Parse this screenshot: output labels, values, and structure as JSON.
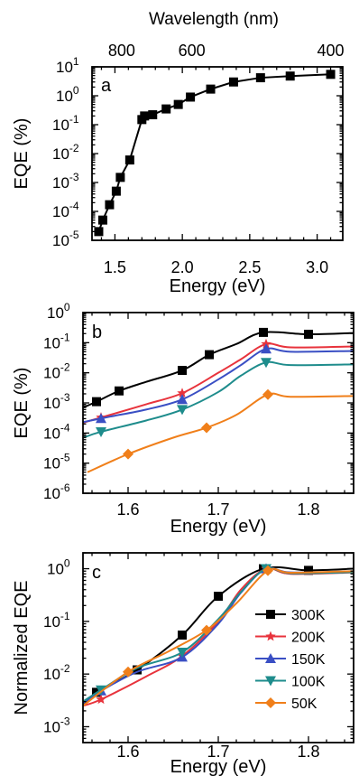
{
  "figure": {
    "top_axis_label": "Wavelength (nm)",
    "top_ticks": [
      "800",
      "600",
      "400"
    ]
  },
  "chart_data": [
    {
      "panel": "a",
      "type": "line",
      "xlabel": "Energy (eV)",
      "ylabel": "EQE (%)",
      "xlim": [
        1.33,
        3.19
      ],
      "ylim": [
        1e-05,
        10
      ],
      "y_scale": "log",
      "x_ticks": [
        "1.5",
        "2.0",
        "2.5",
        "3.0"
      ],
      "y_ticks": [
        "10-5",
        "10-4",
        "10-3",
        "10-2",
        "10-1",
        "100",
        "101"
      ],
      "top_axis": {
        "label": "Wavelength (nm)",
        "ticks": [
          "800",
          "600",
          "400"
        ],
        "tick_energy": [
          1.55,
          2.07,
          3.1
        ]
      },
      "series": [
        {
          "color": "#000000",
          "marker": "square",
          "x": [
            1.38,
            1.41,
            1.46,
            1.51,
            1.54,
            1.61,
            1.7,
            1.72,
            1.78,
            1.88,
            1.97,
            2.06,
            2.21,
            2.38,
            2.58,
            2.8,
            3.1
          ],
          "y": [
            2e-05,
            5e-05,
            0.00017,
            0.0005,
            0.0015,
            0.006,
            0.15,
            0.2,
            0.22,
            0.35,
            0.5,
            0.9,
            1.7,
            3.0,
            4.2,
            4.8,
            5.5
          ]
        }
      ]
    },
    {
      "panel": "b",
      "type": "line",
      "xlabel": "Energy (eV)",
      "ylabel": "EQE (%)",
      "xlim": [
        1.55,
        1.85
      ],
      "ylim": [
        1e-06,
        1
      ],
      "y_scale": "log",
      "x_ticks": [
        "1.6",
        "1.7",
        "1.8"
      ],
      "y_ticks": [
        "10-6",
        "10-5",
        "10-4",
        "10-3",
        "10-2",
        "10-1",
        "100"
      ],
      "series": [
        {
          "color": "#000000",
          "marker": "square",
          "x": [
            1.55,
            1.565,
            1.59,
            1.62,
            1.66,
            1.69,
            1.72,
            1.75,
            1.8,
            1.85
          ],
          "y": [
            0.0007,
            0.0011,
            0.0025,
            0.005,
            0.012,
            0.04,
            0.09,
            0.22,
            0.19,
            0.21
          ],
          "marker_x": [
            1.565,
            1.59,
            1.66,
            1.69,
            1.75,
            1.8
          ]
        },
        {
          "color": "#e8333c",
          "marker": "star",
          "x": [
            1.55,
            1.58,
            1.62,
            1.66,
            1.7,
            1.725,
            1.753,
            1.78,
            1.85
          ],
          "y": [
            0.00022,
            0.0004,
            0.0009,
            0.0021,
            0.01,
            0.028,
            0.09,
            0.07,
            0.075
          ],
          "marker_x": [
            1.57,
            1.66,
            1.753
          ]
        },
        {
          "color": "#3a4fc4",
          "marker": "triangle-up",
          "x": [
            1.55,
            1.58,
            1.62,
            1.66,
            1.7,
            1.725,
            1.753,
            1.78,
            1.85
          ],
          "y": [
            0.00023,
            0.00035,
            0.0006,
            0.0013,
            0.006,
            0.018,
            0.062,
            0.05,
            0.053
          ],
          "marker_x": [
            1.57,
            1.66,
            1.753
          ]
        },
        {
          "color": "#1e8c8c",
          "marker": "triangle-down",
          "x": [
            1.55,
            1.57,
            1.62,
            1.66,
            1.7,
            1.725,
            1.753,
            1.78,
            1.85
          ],
          "y": [
            7e-05,
            0.00011,
            0.00026,
            0.0006,
            0.0023,
            0.008,
            0.022,
            0.018,
            0.019
          ],
          "marker_x": [
            1.57,
            1.66,
            1.753
          ]
        },
        {
          "color": "#f07f1a",
          "marker": "diamond",
          "x": [
            1.555,
            1.6,
            1.65,
            1.687,
            1.72,
            1.755,
            1.78,
            1.85
          ],
          "y": [
            5e-06,
            2e-05,
            7e-05,
            0.00015,
            0.0004,
            0.0019,
            0.0016,
            0.0017
          ],
          "marker_x": [
            1.6,
            1.687,
            1.755
          ]
        }
      ]
    },
    {
      "panel": "c",
      "type": "line",
      "xlabel": "Energy (eV)",
      "ylabel": "Normalized EQE",
      "xlim": [
        1.55,
        1.85
      ],
      "ylim": [
        0.0005,
        2
      ],
      "y_scale": "log",
      "x_ticks": [
        "1.6",
        "1.7",
        "1.8"
      ],
      "y_ticks": [
        "10-3",
        "10-2",
        "10-1",
        "100"
      ],
      "legend_position": "right",
      "series": [
        {
          "name": "300K",
          "color": "#000000",
          "marker": "square",
          "x": [
            1.55,
            1.565,
            1.61,
            1.66,
            1.7,
            1.75,
            1.8,
            1.85
          ],
          "y": [
            0.0025,
            0.0045,
            0.012,
            0.055,
            0.3,
            1.0,
            0.93,
            1.0
          ],
          "marker_x": [
            1.565,
            1.61,
            1.66,
            1.7,
            1.75,
            1.8
          ]
        },
        {
          "name": "200K",
          "color": "#e8333c",
          "marker": "star",
          "x": [
            1.55,
            1.57,
            1.62,
            1.66,
            1.7,
            1.725,
            1.753,
            1.78,
            1.85
          ],
          "y": [
            0.0025,
            0.0033,
            0.009,
            0.022,
            0.1,
            0.4,
            1.0,
            0.8,
            0.85
          ],
          "marker_x": [
            1.57,
            1.66,
            1.753
          ]
        },
        {
          "name": "150K",
          "color": "#3a4fc4",
          "marker": "triangle-up",
          "x": [
            1.55,
            1.57,
            1.61,
            1.66,
            1.7,
            1.725,
            1.753,
            1.78,
            1.85
          ],
          "y": [
            0.0028,
            0.0048,
            0.011,
            0.021,
            0.09,
            0.35,
            1.0,
            0.85,
            0.88
          ],
          "marker_x": [
            1.57,
            1.66,
            1.753
          ]
        },
        {
          "name": "100K",
          "color": "#1e8c8c",
          "marker": "triangle-down",
          "x": [
            1.55,
            1.57,
            1.61,
            1.66,
            1.7,
            1.725,
            1.753,
            1.78,
            1.85
          ],
          "y": [
            0.003,
            0.005,
            0.013,
            0.026,
            0.11,
            0.36,
            1.0,
            0.82,
            0.86
          ],
          "marker_x": [
            1.57,
            1.66,
            1.753
          ]
        },
        {
          "name": "50K",
          "color": "#f07f1a",
          "marker": "diamond",
          "x": [
            1.55,
            1.6,
            1.645,
            1.687,
            1.72,
            1.755,
            1.78,
            1.85
          ],
          "y": [
            0.0025,
            0.011,
            0.027,
            0.068,
            0.22,
            0.92,
            0.84,
            0.9
          ],
          "marker_x": [
            1.6,
            1.687,
            1.755
          ]
        }
      ]
    }
  ]
}
